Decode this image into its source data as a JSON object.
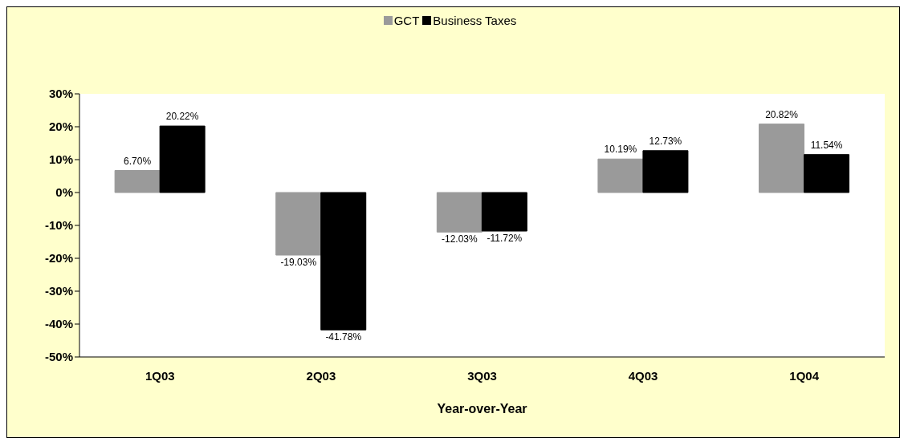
{
  "chart_data": {
    "type": "bar",
    "xlabel": "Year-over-Year",
    "categories": [
      "1Q03",
      "2Q03",
      "3Q03",
      "4Q03",
      "1Q04"
    ],
    "series": [
      {
        "name": "GCT",
        "color": "#9a9a9a",
        "values": [
          6.7,
          -19.03,
          -12.03,
          10.19,
          20.82
        ],
        "value_labels": [
          "6.70%",
          "-19.03%",
          "-12.03%",
          "10.19%",
          "20.82%"
        ]
      },
      {
        "name": "Business Taxes",
        "color": "#000000",
        "values": [
          20.22,
          -41.78,
          -11.72,
          12.73,
          11.54
        ],
        "value_labels": [
          "20.22%",
          "-41.78%",
          "-11.72%",
          "12.73%",
          "11.54%"
        ]
      }
    ],
    "ylim": [
      -50,
      30
    ],
    "yticks": [
      {
        "value": -50,
        "label": "-50%"
      },
      {
        "value": -40,
        "label": "-40%"
      },
      {
        "value": -30,
        "label": "-30%"
      },
      {
        "value": -20,
        "label": "-20%"
      },
      {
        "value": -10,
        "label": "-10%"
      },
      {
        "value": 0,
        "label": "0%"
      },
      {
        "value": 10,
        "label": "10%"
      },
      {
        "value": 20,
        "label": "20%"
      },
      {
        "value": 30,
        "label": "30%"
      }
    ],
    "grid": false,
    "legend": "top"
  }
}
